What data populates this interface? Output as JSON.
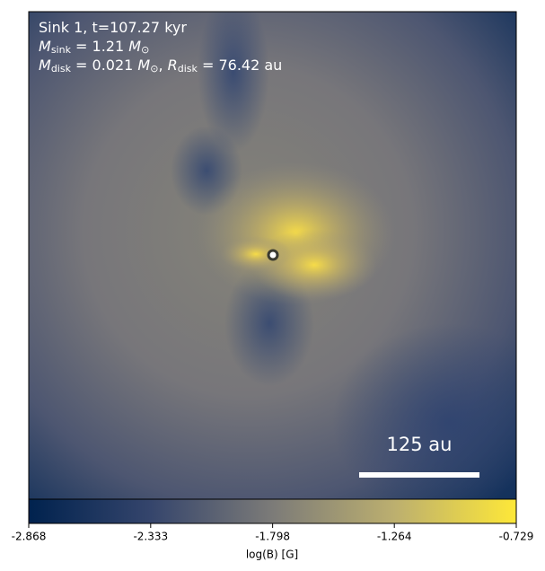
{
  "chart_data": {
    "type": "image",
    "annotations": [
      [
        {
          "text": "Sink 1, t=107.27 kyr",
          "style": "normal"
        }
      ],
      [
        {
          "text": "M",
          "style": "italic"
        },
        {
          "text": "sink",
          "style": "sub"
        },
        {
          "text": " = 1.21 ",
          "style": "normal"
        },
        {
          "text": "M",
          "style": "italic"
        },
        {
          "text": "⊙",
          "style": "sub"
        }
      ],
      [
        {
          "text": "M",
          "style": "italic"
        },
        {
          "text": "disk",
          "style": "sub"
        },
        {
          "text": " = 0.021 ",
          "style": "normal"
        },
        {
          "text": "M",
          "style": "italic"
        },
        {
          "text": "⊙",
          "style": "sub"
        },
        {
          "text": ", ",
          "style": "normal"
        },
        {
          "text": "R",
          "style": "italic"
        },
        {
          "text": "disk",
          "style": "sub"
        },
        {
          "text": " = 76.42 au",
          "style": "normal"
        }
      ]
    ],
    "scale_bar_label": "125 au",
    "colorbar_label": "log(B) [G]",
    "clim": [
      -2.868,
      -0.729
    ],
    "cticks": [
      -2.868,
      -2.333,
      -1.798,
      -1.264,
      -0.729
    ],
    "colormap": [
      "#00224e",
      "#35456c",
      "#7c7b78",
      "#bcaf6f",
      "#fee838"
    ]
  }
}
